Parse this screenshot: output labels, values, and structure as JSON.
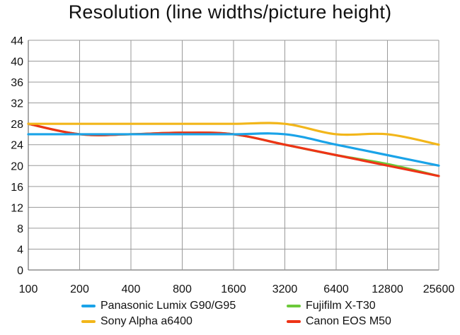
{
  "chart_data": {
    "type": "line",
    "title": "Resolution (line widths/picture height)",
    "xlabel": "",
    "ylabel": "",
    "categories": [
      "100",
      "200",
      "400",
      "800",
      "1600",
      "3200",
      "6400",
      "12800",
      "25600"
    ],
    "ylim": [
      0,
      44
    ],
    "yticks": [
      0,
      4,
      8,
      12,
      16,
      20,
      24,
      28,
      32,
      36,
      40,
      44
    ],
    "grid": true,
    "legend_position": "bottom",
    "series": [
      {
        "name": "Panasonic Lumix G90/G95",
        "color": "#1aa3e8",
        "values": [
          26,
          26,
          26,
          26,
          26,
          26,
          24,
          22,
          20
        ]
      },
      {
        "name": "Sony Alpha a6400",
        "color": "#f2b61a",
        "values": [
          28,
          28,
          28,
          28,
          28,
          28,
          26,
          26,
          24
        ]
      },
      {
        "name": "Fujifilm X-T30",
        "color": "#6cc93a",
        "values": [
          28,
          26,
          26,
          26.3,
          26,
          24,
          22,
          20.3,
          18
        ]
      },
      {
        "name": "Canon EOS M50",
        "color": "#ee3316",
        "values": [
          28,
          26,
          26,
          26.3,
          26,
          24,
          22,
          20,
          18
        ]
      }
    ]
  }
}
